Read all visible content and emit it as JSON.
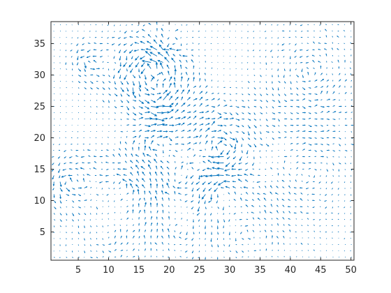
{
  "chart_data": {
    "type": "quiver",
    "title": "",
    "xlabel": "",
    "ylabel": "",
    "xlim": [
      0.5,
      50.5
    ],
    "ylim": [
      0.5,
      38.5
    ],
    "xticks": [
      5,
      10,
      15,
      20,
      25,
      30,
      35,
      40,
      45,
      50
    ],
    "yticks": [
      5,
      10,
      15,
      20,
      25,
      30,
      35
    ],
    "grid": false,
    "series": [
      {
        "color": "#0072BD",
        "grid_x": [
          1,
          50
        ],
        "grid_y": [
          1,
          38
        ],
        "regions": [
          {
            "cx": 17,
            "cy": 31,
            "r": 5.5,
            "magnitude": 1.6,
            "rotation": 1
          },
          {
            "cx": 20,
            "cy": 35,
            "r": 3,
            "magnitude": 1.3,
            "rotation": -1
          },
          {
            "cx": 7,
            "cy": 32,
            "r": 2.5,
            "magnitude": 1.4,
            "rotation": 1
          },
          {
            "cx": 18,
            "cy": 26,
            "r": 5,
            "magnitude": 1.0,
            "rotation": 1
          },
          {
            "cx": 18,
            "cy": 19,
            "r": 5,
            "magnitude": 1.1,
            "rotation": -1
          },
          {
            "cx": 28.5,
            "cy": 18,
            "r": 5.5,
            "magnitude": 1.5,
            "rotation": -1
          },
          {
            "cx": 4,
            "cy": 13,
            "r": 4,
            "magnitude": 1.2,
            "rotation": 1
          },
          {
            "cx": 13,
            "cy": 12,
            "r": 5,
            "magnitude": 0.9,
            "rotation": 1
          },
          {
            "cx": 22,
            "cy": 13,
            "r": 4,
            "magnitude": 0.9,
            "rotation": -1
          },
          {
            "cx": 29,
            "cy": 12,
            "r": 4,
            "magnitude": 0.9,
            "rotation": 1
          },
          {
            "cx": 43,
            "cy": 30,
            "r": 8,
            "magnitude": 0.75,
            "rotation": 1
          },
          {
            "cx": 43,
            "cy": 14,
            "r": 9,
            "magnitude": 0.6,
            "rotation": -1
          },
          {
            "cx": 10,
            "cy": 4,
            "r": 7,
            "magnitude": 0.55,
            "rotation": 1
          },
          {
            "cx": 22,
            "cy": 5,
            "r": 6,
            "magnitude": 0.6,
            "rotation": -1
          },
          {
            "cx": 33,
            "cy": 5,
            "r": 8,
            "magnitude": 0.5,
            "rotation": 1
          }
        ]
      }
    ]
  }
}
